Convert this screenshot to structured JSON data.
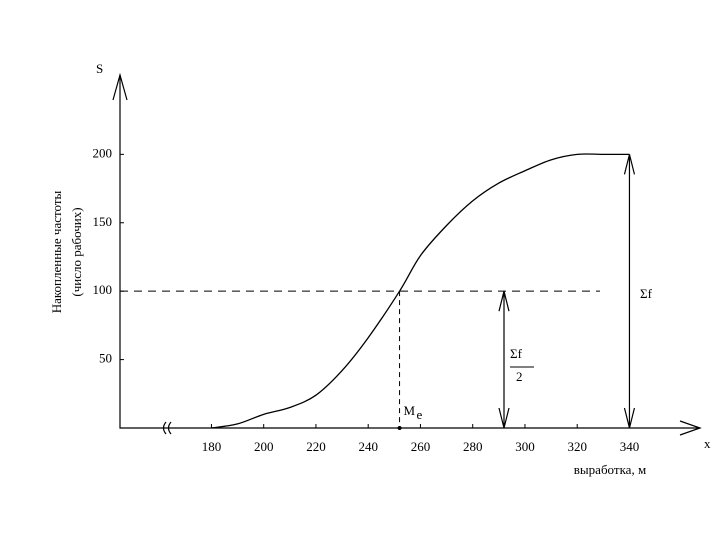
{
  "chart_data": {
    "type": "line",
    "y_label": "S",
    "x_label": "x",
    "y_title": "Накопленные частоты",
    "y_subtitle": "(число рабочих)",
    "x_title": "выработка, м",
    "x": [
      180,
      190,
      200,
      210,
      220,
      230,
      240,
      252,
      260,
      270,
      280,
      290,
      300,
      310,
      320,
      330,
      340
    ],
    "values": [
      0,
      3,
      10,
      15,
      24,
      42,
      66,
      100,
      126,
      148,
      166,
      179,
      188,
      196,
      200,
      200,
      200
    ],
    "color": "#000000",
    "xlim": [
      145,
      367
    ],
    "ylim": [
      0,
      258
    ],
    "xticks": [
      180,
      200,
      220,
      240,
      260,
      280,
      300,
      320,
      340
    ],
    "yticks": [
      50,
      100,
      150,
      200
    ],
    "median": 252,
    "median_label": "M",
    "median_sub": "e",
    "half_total": 100,
    "total": 200,
    "total_label": "Σf",
    "half_label": "Σf",
    "half_divisor": "2"
  }
}
